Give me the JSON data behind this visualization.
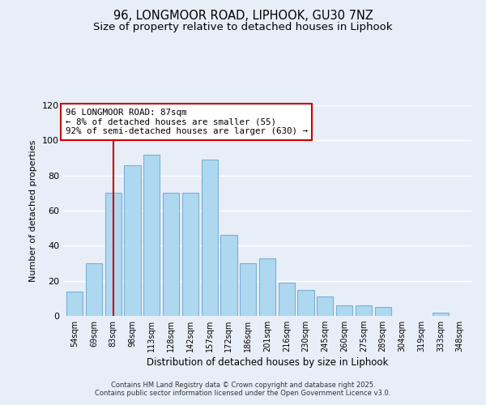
{
  "title": "96, LONGMOOR ROAD, LIPHOOK, GU30 7NZ",
  "subtitle": "Size of property relative to detached houses in Liphook",
  "xlabel": "Distribution of detached houses by size in Liphook",
  "ylabel": "Number of detached properties",
  "bar_labels": [
    "54sqm",
    "69sqm",
    "83sqm",
    "98sqm",
    "113sqm",
    "128sqm",
    "142sqm",
    "157sqm",
    "172sqm",
    "186sqm",
    "201sqm",
    "216sqm",
    "230sqm",
    "245sqm",
    "260sqm",
    "275sqm",
    "289sqm",
    "304sqm",
    "319sqm",
    "333sqm",
    "348sqm"
  ],
  "bar_values": [
    14,
    30,
    70,
    86,
    92,
    70,
    70,
    89,
    46,
    30,
    33,
    19,
    15,
    11,
    6,
    6,
    5,
    0,
    0,
    2,
    0
  ],
  "bar_color": "#add8f0",
  "bar_edge_color": "#7ab0d4",
  "vline_x_index": 2,
  "vline_color": "#cc0000",
  "ylim": [
    0,
    120
  ],
  "yticks": [
    0,
    20,
    40,
    60,
    80,
    100,
    120
  ],
  "annotation_title": "96 LONGMOOR ROAD: 87sqm",
  "annotation_line1": "← 8% of detached houses are smaller (55)",
  "annotation_line2": "92% of semi-detached houses are larger (630) →",
  "annotation_box_color": "#ffffff",
  "annotation_box_edge": "#cc0000",
  "background_color": "#e8eef8",
  "grid_color": "#ffffff",
  "footer_line1": "Contains HM Land Registry data © Crown copyright and database right 2025.",
  "footer_line2": "Contains public sector information licensed under the Open Government Licence v3.0.",
  "title_fontsize": 10.5,
  "subtitle_fontsize": 9.5
}
